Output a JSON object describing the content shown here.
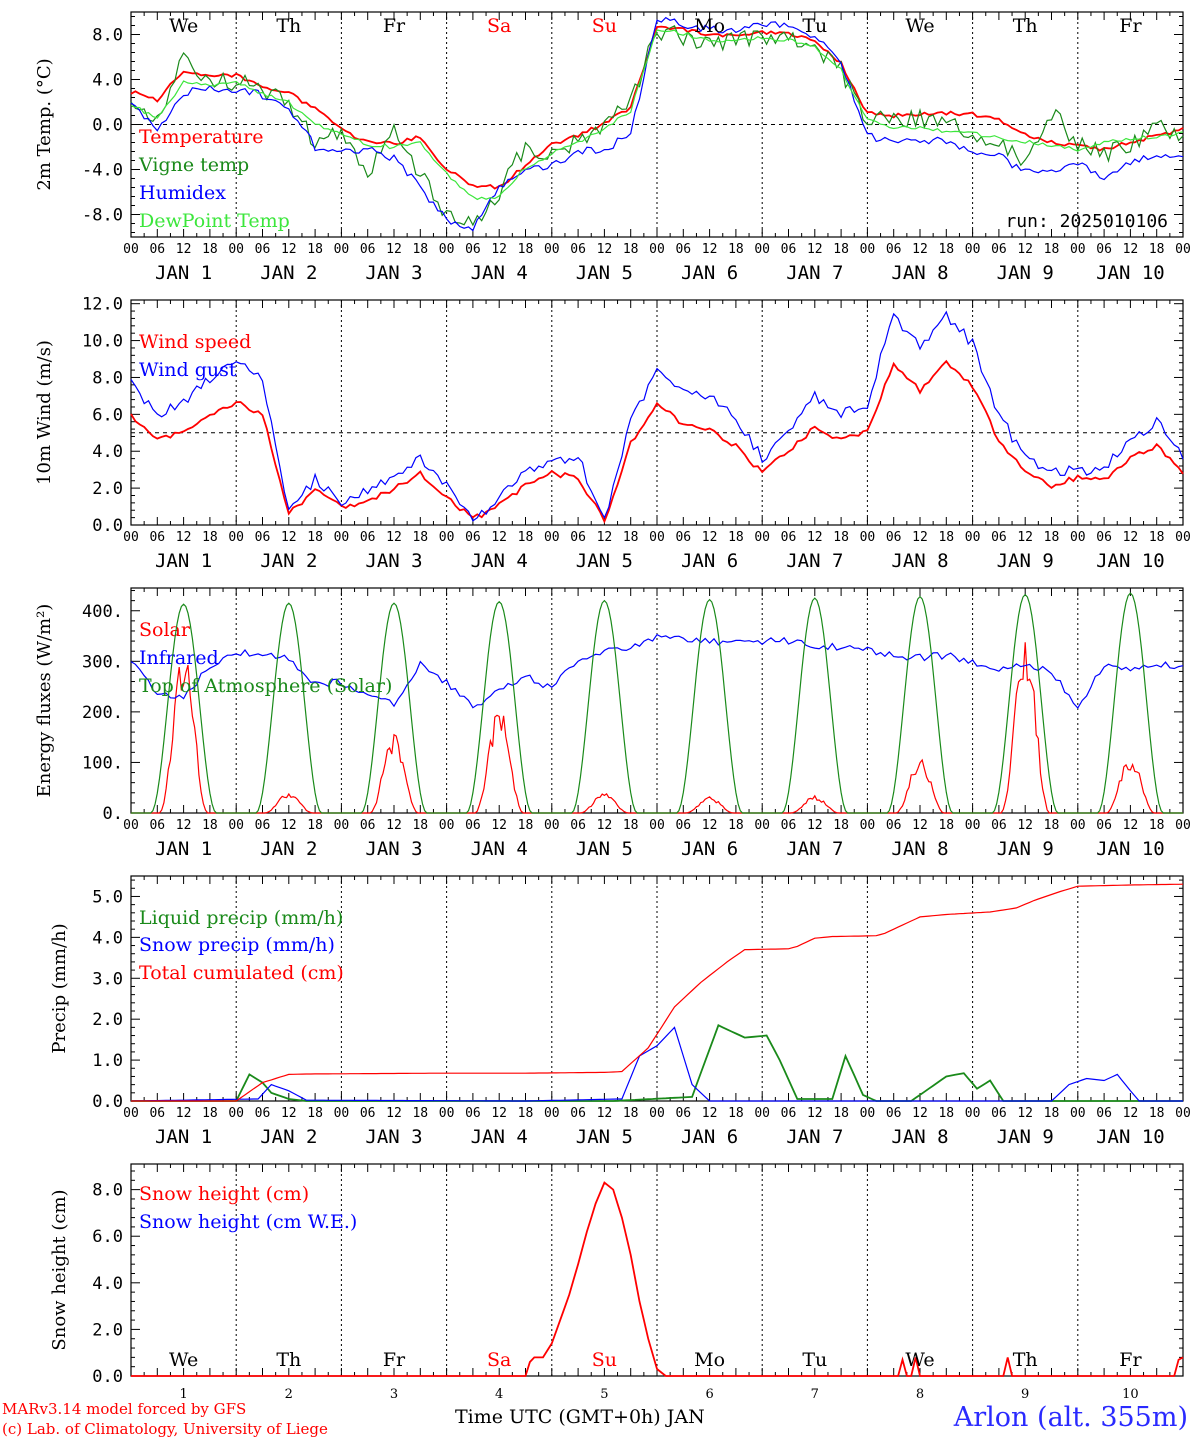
{
  "footer": {
    "credit_line1": "MARv3.14 model forced by GFS",
    "credit_line2": "(c) Lab. of Climatology, University of Liege",
    "xaxis_title": "Time UTC (GMT+0h) JAN",
    "station": "Arlon (alt. 355m)"
  },
  "day_names": [
    "We",
    "Th",
    "Fr",
    "Sa",
    "Su",
    "Mo",
    "Tu",
    "We",
    "Th",
    "Fr"
  ],
  "weekend_day_indices": [
    3,
    4
  ],
  "colors": {
    "red": "#ff0000",
    "green": "#1a8a1a",
    "blue": "#0000ff",
    "lightgreen": "#3ce63c",
    "grid": "#000000"
  },
  "hour_ticks": [
    "00",
    "06",
    "12",
    "18"
  ],
  "date_labels": [
    "JAN  1",
    "JAN  2",
    "JAN  3",
    "JAN  4",
    "JAN  5",
    "JAN  6",
    "JAN  7",
    "JAN  8",
    "JAN  9",
    "JAN 10"
  ],
  "bottom_day_numbers": [
    "1",
    "2",
    "3",
    "4",
    "5",
    "6",
    "7",
    "8",
    "9",
    "10"
  ],
  "chart_data": [
    {
      "type": "line",
      "ylabel": "2m Temp. (°C)",
      "ylim": [
        -10,
        10
      ],
      "yticks": [
        "-8.0",
        "-4.0",
        "0.0",
        "4.0",
        "8.0"
      ],
      "ytick_values": [
        -8,
        -4,
        0,
        4,
        8
      ],
      "dashed_reference": 0,
      "annotation": "run: 2025010106",
      "x_hours": [
        0,
        6,
        12,
        18,
        24,
        30,
        36,
        42,
        48,
        54,
        60,
        66,
        72,
        78,
        84,
        90,
        96,
        102,
        108,
        114,
        120,
        126,
        132,
        138,
        144,
        150,
        156,
        162,
        168,
        174,
        180,
        186,
        192,
        198,
        204,
        210,
        216,
        222,
        228,
        234,
        240
      ],
      "series": [
        {
          "name": "Temperature",
          "color": "#ff0000",
          "values": [
            2.9,
            2.2,
            4.7,
            4.3,
            4.4,
            3.3,
            2.8,
            1.4,
            -0.5,
            -1.6,
            -1.7,
            -1.1,
            -4.0,
            -5.4,
            -5.6,
            -3.6,
            -1.8,
            -1.0,
            0.1,
            1.5,
            8.7,
            8.4,
            8.0,
            7.8,
            8.2,
            8.0,
            7.4,
            5.4,
            1.0,
            0.8,
            0.9,
            1.0,
            0.9,
            0.4,
            -0.9,
            -1.6,
            -1.9,
            -2.2,
            -1.6,
            -1.0,
            -0.4
          ]
        },
        {
          "name": "Vigne temp",
          "color": "#1a8a1a",
          "values": [
            1.5,
            0.0,
            5.9,
            3.6,
            3.9,
            3.0,
            2.1,
            -1.6,
            -0.7,
            -4.2,
            -0.5,
            -4.3,
            -8.3,
            -9.0,
            -6.0,
            -1.9,
            -2.8,
            -1.4,
            0.0,
            1.8,
            8.4,
            7.8,
            7.2,
            7.6,
            7.7,
            7.5,
            7.0,
            4.8,
            0.3,
            0.5,
            0.5,
            0.3,
            -1.3,
            -1.2,
            -3.7,
            1.2,
            -1.7,
            -2.7,
            -1.8,
            0.0,
            -1.2
          ]
        },
        {
          "name": "Humidex",
          "color": "#0000ff",
          "values": [
            1.8,
            -0.4,
            2.9,
            3.1,
            3.2,
            2.6,
            1.5,
            -2.0,
            -2.5,
            -2.2,
            -3.0,
            -5.6,
            -8.5,
            -9.1,
            -5.6,
            -4.0,
            -3.7,
            -2.4,
            -2.2,
            -0.9,
            9.5,
            8.8,
            8.5,
            8.5,
            9.0,
            8.6,
            8.0,
            5.6,
            -1.0,
            -1.5,
            -1.4,
            -1.5,
            -2.4,
            -2.8,
            -4.2,
            -4.2,
            -3.6,
            -4.6,
            -3.5,
            -2.7,
            -2.6
          ]
        },
        {
          "name": "DewPoint Temp",
          "color": "#3ce63c",
          "values": [
            1.7,
            0.6,
            3.7,
            3.5,
            3.7,
            2.7,
            1.9,
            0.0,
            -0.8,
            -1.8,
            -2.0,
            -1.6,
            -4.4,
            -6.5,
            -6.5,
            -3.8,
            -2.6,
            -1.6,
            -0.4,
            1.2,
            8.5,
            8.1,
            7.4,
            7.4,
            7.7,
            7.5,
            6.9,
            4.9,
            0.4,
            -0.4,
            -0.2,
            -0.6,
            -0.8,
            -1.2,
            -1.5,
            -1.8,
            -2.2,
            -1.6,
            -1.3,
            -1.1,
            -0.8
          ]
        }
      ]
    },
    {
      "type": "line",
      "ylabel": "10m Wind (m/s)",
      "ylim": [
        0,
        12.2
      ],
      "yticks": [
        "0.0",
        "2.0",
        "4.0",
        "6.0",
        "8.0",
        "10.0",
        "12.0"
      ],
      "ytick_values": [
        0,
        2,
        4,
        6,
        8,
        10,
        12
      ],
      "dashed_reference": 5,
      "x_hours": [
        0,
        6,
        12,
        18,
        24,
        30,
        36,
        42,
        48,
        54,
        60,
        66,
        72,
        78,
        84,
        90,
        96,
        102,
        108,
        114,
        120,
        126,
        132,
        138,
        144,
        150,
        156,
        162,
        168,
        174,
        180,
        186,
        192,
        198,
        204,
        210,
        216,
        222,
        228,
        234,
        240
      ],
      "series": [
        {
          "name": "Wind speed",
          "color": "#ff0000",
          "values": [
            6.0,
            4.6,
            5.1,
            6.0,
            6.7,
            6.0,
            0.6,
            1.9,
            1.0,
            1.2,
            2.0,
            2.8,
            1.6,
            0.3,
            1.1,
            2.1,
            2.8,
            2.6,
            0.2,
            4.4,
            6.5,
            5.5,
            5.2,
            4.3,
            2.8,
            4.0,
            5.3,
            4.6,
            5.0,
            8.8,
            7.3,
            8.9,
            7.5,
            4.6,
            2.8,
            2.1,
            2.6,
            2.4,
            3.6,
            4.3,
            2.9
          ]
        },
        {
          "name": "Wind gust",
          "color": "#0000ff",
          "values": [
            7.7,
            6.0,
            6.7,
            7.9,
            8.8,
            7.9,
            0.8,
            2.5,
            1.2,
            1.8,
            2.6,
            3.6,
            2.2,
            0.3,
            1.4,
            2.8,
            3.6,
            3.7,
            0.3,
            5.6,
            8.3,
            7.2,
            7.0,
            5.8,
            3.6,
            5.2,
            7.0,
            6.1,
            6.6,
            11.4,
            9.6,
            11.4,
            9.8,
            6.0,
            3.6,
            2.8,
            3.0,
            3.0,
            4.7,
            5.6,
            3.8
          ]
        }
      ]
    },
    {
      "type": "line",
      "ylabel": "Energy fluxes (W/m²)",
      "ylim": [
        0,
        445
      ],
      "yticks": [
        "0.",
        "100.",
        "200.",
        "300.",
        "400."
      ],
      "ytick_values": [
        0,
        100,
        200,
        300,
        400
      ],
      "series": [
        {
          "name": "Solar",
          "color": "#ff0000",
          "day_peaks": [
            280,
            35,
            138,
            182,
            35,
            28,
            30,
            95,
            305,
            98
          ]
        },
        {
          "name": "Infrared",
          "color": "#0000ff",
          "x_hours": [
            0,
            6,
            12,
            18,
            24,
            30,
            36,
            42,
            48,
            54,
            60,
            66,
            72,
            78,
            84,
            90,
            96,
            102,
            108,
            114,
            120,
            126,
            132,
            138,
            144,
            150,
            156,
            162,
            168,
            174,
            180,
            186,
            192,
            198,
            204,
            210,
            216,
            222,
            228,
            234,
            240
          ],
          "values": [
            300,
            235,
            232,
            288,
            318,
            315,
            305,
            255,
            260,
            230,
            218,
            295,
            258,
            210,
            242,
            270,
            245,
            307,
            318,
            330,
            348,
            343,
            340,
            337,
            340,
            340,
            333,
            326,
            325,
            310,
            308,
            312,
            300,
            283,
            292,
            280,
            210,
            290,
            287,
            292,
            292
          ]
        },
        {
          "name": "Top of Atmosphere (Solar)",
          "color": "#1a8a1a",
          "day_peaks": [
            413,
            415,
            415,
            418,
            420,
            422,
            425,
            428,
            432,
            435
          ]
        }
      ]
    },
    {
      "type": "line",
      "ylabel": "Precip (mm/h)",
      "ylim": [
        0,
        5.5
      ],
      "yticks": [
        "0.0",
        "1.0",
        "2.0",
        "3.0",
        "4.0",
        "5.0"
      ],
      "ytick_values": [
        0,
        1,
        2,
        3,
        4,
        5
      ],
      "series": [
        {
          "name": "Liquid precip (mm/h)",
          "color": "#1a8a1a",
          "points": [
            [
              0,
              0
            ],
            [
              24,
              0
            ],
            [
              27,
              0.65
            ],
            [
              30,
              0.45
            ],
            [
              32,
              0.2
            ],
            [
              36,
              0.05
            ],
            [
              40,
              0
            ],
            [
              110,
              0
            ],
            [
              128,
              0.1
            ],
            [
              134,
              1.85
            ],
            [
              140,
              1.55
            ],
            [
              145,
              1.6
            ],
            [
              148,
              1.0
            ],
            [
              152,
              0.05
            ],
            [
              160,
              0.05
            ],
            [
              163,
              1.1
            ],
            [
              167,
              0.15
            ],
            [
              170,
              0
            ],
            [
              178,
              0
            ],
            [
              186,
              0.6
            ],
            [
              190,
              0.68
            ],
            [
              193,
              0.3
            ],
            [
              196,
              0.5
            ],
            [
              199,
              0
            ],
            [
              240,
              0
            ]
          ]
        },
        {
          "name": "Snow precip (mm/h)",
          "color": "#0000ff",
          "points": [
            [
              0,
              0
            ],
            [
              29,
              0.05
            ],
            [
              32,
              0.4
            ],
            [
              36,
              0.25
            ],
            [
              40,
              0.02
            ],
            [
              90,
              0
            ],
            [
              112,
              0.05
            ],
            [
              116,
              1.1
            ],
            [
              120,
              1.35
            ],
            [
              124,
              1.8
            ],
            [
              128,
              0.4
            ],
            [
              132,
              0
            ],
            [
              210,
              0
            ],
            [
              214,
              0.4
            ],
            [
              218,
              0.55
            ],
            [
              222,
              0.5
            ],
            [
              225,
              0.65
            ],
            [
              228,
              0.25
            ],
            [
              230,
              0
            ],
            [
              250,
              0
            ],
            [
              280,
              0.02
            ],
            [
              300,
              0
            ],
            [
              380,
              0.05
            ],
            [
              388,
              0.05
            ],
            [
              402,
              0.22
            ],
            [
              404,
              0.05
            ]
          ]
        },
        {
          "name": "Total cumulated (cm)",
          "color": "#ff0000",
          "points": [
            [
              0,
              0
            ],
            [
              24,
              0
            ],
            [
              30,
              0.45
            ],
            [
              36,
              0.65
            ],
            [
              40,
              0.66
            ],
            [
              70,
              0.68
            ],
            [
              90,
              0.68
            ],
            [
              108,
              0.7
            ],
            [
              112,
              0.72
            ],
            [
              118,
              1.3
            ],
            [
              124,
              2.3
            ],
            [
              130,
              2.9
            ],
            [
              136,
              3.4
            ],
            [
              140,
              3.7
            ],
            [
              150,
              3.72
            ],
            [
              152,
              3.78
            ],
            [
              156,
              3.98
            ],
            [
              160,
              4.02
            ],
            [
              170,
              4.04
            ],
            [
              172,
              4.1
            ],
            [
              176,
              4.3
            ],
            [
              180,
              4.5
            ],
            [
              186,
              4.56
            ],
            [
              196,
              4.62
            ],
            [
              202,
              4.72
            ],
            [
              206,
              4.9
            ],
            [
              212,
              5.12
            ],
            [
              216,
              5.25
            ],
            [
              228,
              5.28
            ],
            [
              240,
              5.3
            ]
          ]
        }
      ]
    },
    {
      "type": "line",
      "ylabel": "Snow height (cm)",
      "ylim": [
        0,
        9.1
      ],
      "yticks": [
        "0.0",
        "2.0",
        "4.0",
        "6.0",
        "8.0"
      ],
      "ytick_values": [
        0,
        2,
        4,
        6,
        8
      ],
      "series": [
        {
          "name": "Snow height (cm)",
          "color": "#ff0000",
          "points": [
            [
              0,
              0
            ],
            [
              90,
              0
            ],
            [
              91,
              0.6
            ],
            [
              92,
              0.8
            ],
            [
              94,
              0.8
            ],
            [
              96,
              1.4
            ],
            [
              100,
              3.5
            ],
            [
              102,
              4.8
            ],
            [
              104,
              6.2
            ],
            [
              106,
              7.4
            ],
            [
              108,
              8.3
            ],
            [
              110,
              8.0
            ],
            [
              112,
              6.8
            ],
            [
              114,
              5.2
            ],
            [
              116,
              3.2
            ],
            [
              118,
              1.6
            ],
            [
              120,
              0.3
            ],
            [
              122,
              0
            ],
            [
              175,
              0
            ],
            [
              176,
              0.7
            ],
            [
              177,
              0
            ],
            [
              178,
              0
            ],
            [
              179,
              0.8
            ],
            [
              180,
              0
            ],
            [
              182,
              0
            ],
            [
              199,
              0
            ],
            [
              200,
              0.8
            ],
            [
              201,
              0
            ],
            [
              238,
              0
            ],
            [
              239,
              0.7
            ],
            [
              240,
              0.8
            ]
          ]
        },
        {
          "name": "Snow height (cm W.E.)",
          "color": "#0000ff",
          "points": []
        }
      ]
    }
  ]
}
